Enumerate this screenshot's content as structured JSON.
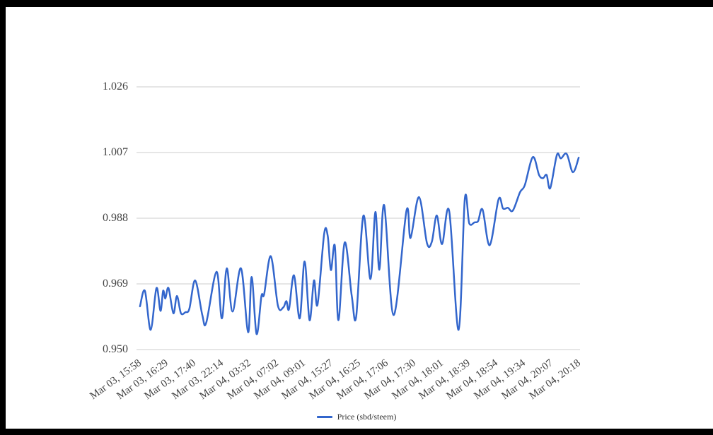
{
  "colors": {
    "background": "#ffffff",
    "frame": "#000000",
    "line": "#3366cc",
    "grid": "#cccccc",
    "axis_text": "#444444",
    "legend_text": "#333333"
  },
  "legend": {
    "label": "Price (sbd/steem)"
  },
  "chart_data": {
    "type": "line",
    "title": "",
    "xlabel": "",
    "ylabel": "",
    "grid": "on",
    "legend_position": "bottom-center",
    "ylim": [
      0.95,
      1.026
    ],
    "y_ticks": [
      0.95,
      0.969,
      0.988,
      1.007,
      1.026
    ],
    "y_tick_decimals": 3,
    "x_tick_labels": [
      "Mar 03, 15:58",
      "Mar 03, 16:29",
      "Mar 03, 17:40",
      "Mar 03, 22:14",
      "Mar 04, 03:32",
      "Mar 04, 07:02",
      "Mar 04, 09:01",
      "Mar 04, 15:27",
      "Mar 04, 16:25",
      "Mar 04, 17:06",
      "Mar 04, 17:30",
      "Mar 04, 18:01",
      "Mar 04, 18:39",
      "Mar 04, 18:54",
      "Mar 04, 19:34",
      "Mar 04, 20:07",
      "Mar 04, 20:18"
    ],
    "series": [
      {
        "name": "Price (sbd/steem)",
        "color": "#3366cc",
        "points": [
          [
            0.011,
            0.9625
          ],
          [
            0.022,
            0.967
          ],
          [
            0.035,
            0.9557
          ],
          [
            0.048,
            0.9678
          ],
          [
            0.057,
            0.9612
          ],
          [
            0.063,
            0.967
          ],
          [
            0.068,
            0.9648
          ],
          [
            0.075,
            0.9678
          ],
          [
            0.086,
            0.9605
          ],
          [
            0.094,
            0.9655
          ],
          [
            0.103,
            0.9605
          ],
          [
            0.113,
            0.9608
          ],
          [
            0.122,
            0.9618
          ],
          [
            0.135,
            0.97
          ],
          [
            0.151,
            0.96
          ],
          [
            0.16,
            0.9578
          ],
          [
            0.183,
            0.9725
          ],
          [
            0.195,
            0.959
          ],
          [
            0.206,
            0.9735
          ],
          [
            0.219,
            0.961
          ],
          [
            0.238,
            0.9735
          ],
          [
            0.254,
            0.955
          ],
          [
            0.262,
            0.971
          ],
          [
            0.273,
            0.9545
          ],
          [
            0.284,
            0.9655
          ],
          [
            0.29,
            0.966
          ],
          [
            0.305,
            0.977
          ],
          [
            0.321,
            0.9627
          ],
          [
            0.333,
            0.9622
          ],
          [
            0.34,
            0.964
          ],
          [
            0.346,
            0.9617
          ],
          [
            0.357,
            0.9715
          ],
          [
            0.37,
            0.959
          ],
          [
            0.381,
            0.9755
          ],
          [
            0.392,
            0.9585
          ],
          [
            0.402,
            0.97
          ],
          [
            0.41,
            0.963
          ],
          [
            0.425,
            0.9835
          ],
          [
            0.433,
            0.9828
          ],
          [
            0.44,
            0.973
          ],
          [
            0.449,
            0.98
          ],
          [
            0.457,
            0.9585
          ],
          [
            0.471,
            0.981
          ],
          [
            0.487,
            0.9655
          ],
          [
            0.497,
            0.9596
          ],
          [
            0.513,
            0.9887
          ],
          [
            0.529,
            0.9704
          ],
          [
            0.54,
            0.9898
          ],
          [
            0.549,
            0.9731
          ],
          [
            0.56,
            0.9917
          ],
          [
            0.581,
            0.96
          ],
          [
            0.61,
            0.9902
          ],
          [
            0.619,
            0.9823
          ],
          [
            0.638,
            0.9941
          ],
          [
            0.656,
            0.9808
          ],
          [
            0.667,
            0.9812
          ],
          [
            0.678,
            0.9888
          ],
          [
            0.69,
            0.9805
          ],
          [
            0.706,
            0.99
          ],
          [
            0.727,
            0.9557
          ],
          [
            0.741,
            0.9935
          ],
          [
            0.751,
            0.9865
          ],
          [
            0.763,
            0.9868
          ],
          [
            0.771,
            0.9872
          ],
          [
            0.781,
            0.9905
          ],
          [
            0.797,
            0.9802
          ],
          [
            0.817,
            0.9935
          ],
          [
            0.827,
            0.9908
          ],
          [
            0.838,
            0.991
          ],
          [
            0.849,
            0.9902
          ],
          [
            0.865,
            0.9955
          ],
          [
            0.876,
            0.9976
          ],
          [
            0.894,
            1.0057
          ],
          [
            0.908,
            1.0005
          ],
          [
            0.917,
            0.9996
          ],
          [
            0.925,
            1.0005
          ],
          [
            0.933,
            0.9967
          ],
          [
            0.948,
            1.0063
          ],
          [
            0.957,
            1.0053
          ],
          [
            0.97,
            1.0066
          ],
          [
            0.984,
            1.0013
          ],
          [
            0.997,
            1.0055
          ]
        ]
      }
    ]
  }
}
